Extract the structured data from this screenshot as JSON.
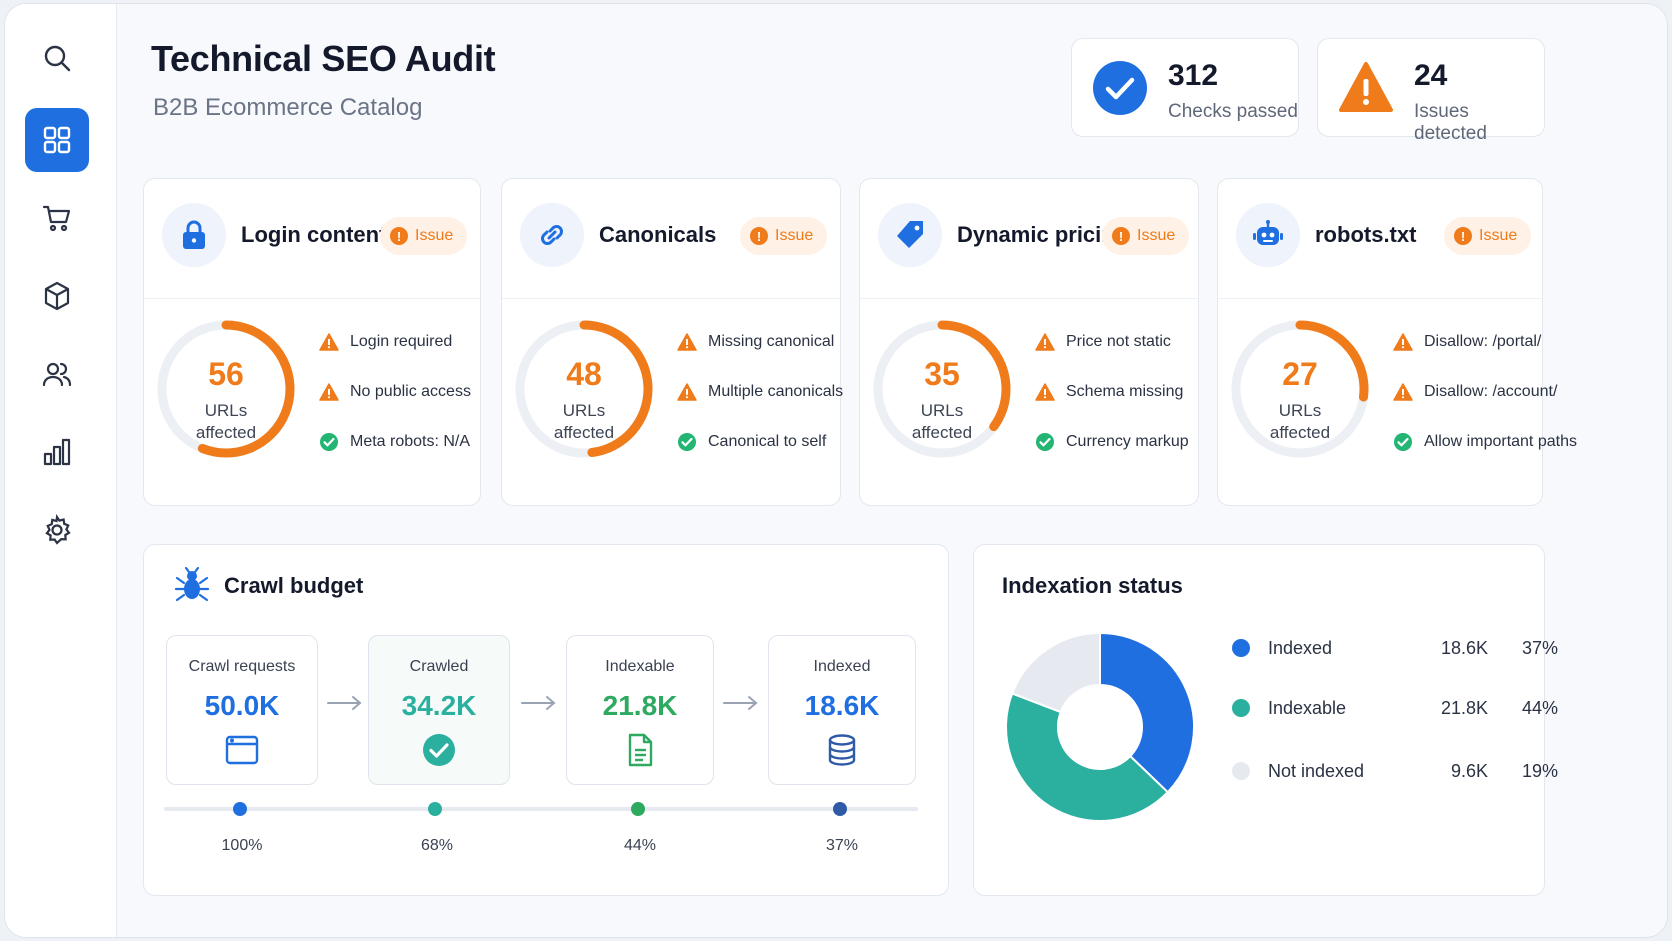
{
  "colors": {
    "accent": "#1f6fe0",
    "warning": "#ef7b1a",
    "success": "#22b573",
    "teal": "#2bb0a0",
    "green": "#2ea960",
    "muted": "#e6e9ef"
  },
  "sidebar": {
    "items": [
      {
        "name": "search",
        "icon": "search-icon"
      },
      {
        "name": "dashboard",
        "icon": "grid-icon",
        "active": true
      },
      {
        "name": "cart",
        "icon": "cart-icon"
      },
      {
        "name": "products",
        "icon": "box-icon"
      },
      {
        "name": "users",
        "icon": "users-icon"
      },
      {
        "name": "analytics",
        "icon": "bar-chart-icon"
      },
      {
        "name": "settings",
        "icon": "gear-icon"
      }
    ]
  },
  "header": {
    "title": "Technical SEO Audit",
    "subtitle": "B2B Ecommerce Catalog",
    "stats": [
      {
        "value": "312",
        "label": "Checks passed",
        "icon": "check-circle-icon"
      },
      {
        "value": "24",
        "label": "Issues detected",
        "icon": "warning-icon"
      }
    ]
  },
  "cards": [
    {
      "title": "Login content",
      "badge": "Issue",
      "icon": "lock-icon",
      "value": "56",
      "unit_line1": "URLs",
      "unit_line2": "affected",
      "gauge_fraction": 0.56,
      "checks": [
        {
          "text": "Login required",
          "status": "warning"
        },
        {
          "text": "No public access",
          "status": "warning"
        },
        {
          "text": "Meta robots: N/A",
          "status": "ok"
        }
      ]
    },
    {
      "title": "Canonicals",
      "badge": "Issue",
      "icon": "link-icon",
      "value": "48",
      "unit_line1": "URLs",
      "unit_line2": "affected",
      "gauge_fraction": 0.48,
      "checks": [
        {
          "text": "Missing canonical",
          "status": "warning"
        },
        {
          "text": "Multiple canonicals",
          "status": "warning"
        },
        {
          "text": "Canonical to self",
          "status": "ok"
        }
      ]
    },
    {
      "title": "Dynamic pricing",
      "badge": "Issue",
      "icon": "price-tag-icon",
      "value": "35",
      "unit_line1": "URLs",
      "unit_line2": "affected",
      "gauge_fraction": 0.35,
      "checks": [
        {
          "text": "Price not static",
          "status": "warning"
        },
        {
          "text": "Schema missing",
          "status": "warning"
        },
        {
          "text": "Currency markup",
          "status": "ok"
        }
      ]
    },
    {
      "title": "robots.txt",
      "badge": "Issue",
      "icon": "robot-icon",
      "value": "27",
      "unit_line1": "URLs",
      "unit_line2": "affected",
      "gauge_fraction": 0.27,
      "checks": [
        {
          "text": "Disallow: /portal/",
          "status": "warning"
        },
        {
          "text": "Disallow: /account/",
          "status": "warning"
        },
        {
          "text": "Allow important paths",
          "status": "ok"
        }
      ]
    }
  ],
  "crawl_budget": {
    "title": "Crawl budget",
    "icon": "spider-icon",
    "steps": [
      {
        "label": "Crawl requests",
        "value": "50.0K",
        "percent": "100%",
        "icon": "browser-window-icon",
        "color": "#1f6fe0"
      },
      {
        "label": "Crawled",
        "value": "34.2K",
        "percent": "68%",
        "icon": "check-circle-icon",
        "color": "#2bb0a0"
      },
      {
        "label": "Indexable",
        "value": "21.8K",
        "percent": "44%",
        "icon": "document-icon",
        "color": "#2ea960"
      },
      {
        "label": "Indexed",
        "value": "18.6K",
        "percent": "37%",
        "icon": "database-icon",
        "color": "#1f6fe0"
      }
    ]
  },
  "indexation": {
    "title": "Indexation status",
    "legend": [
      {
        "label": "Indexed",
        "value": "18.6K",
        "percent": "37%",
        "color": "#1f6fe0"
      },
      {
        "label": "Indexable",
        "value": "21.8K",
        "percent": "44%",
        "color": "#2bb0a0"
      },
      {
        "label": "Not indexed",
        "value": "9.6K",
        "percent": "19%",
        "color": "#e6e9ef"
      }
    ]
  },
  "chart_data": {
    "type": "pie",
    "title": "Indexation status",
    "categories": [
      "Indexed",
      "Indexable",
      "Not indexed"
    ],
    "values": [
      18.6,
      21.8,
      9.6
    ],
    "percentages": [
      37,
      44,
      19
    ]
  }
}
